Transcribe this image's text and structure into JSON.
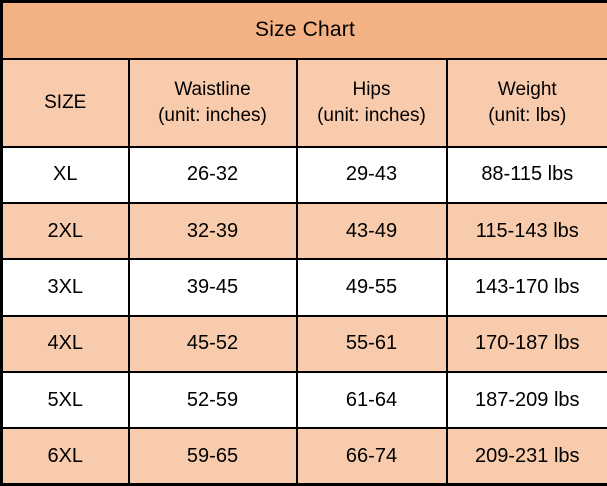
{
  "title": "Size Chart",
  "colors": {
    "title_bg": "#F4B183",
    "band_bg": "#F8CBAD",
    "white_bg": "#FFFFFF",
    "border": "#000000",
    "text": "#000000"
  },
  "table": {
    "headers": {
      "size": {
        "label": "SIZE",
        "sublabel": ""
      },
      "waist": {
        "label": "Waistline",
        "sublabel": "(unit: inches)"
      },
      "hips": {
        "label": "Hips",
        "sublabel": "(unit: inches)"
      },
      "weight": {
        "label": "Weight",
        "sublabel": "(unit: lbs)"
      }
    },
    "rows": [
      {
        "size": "XL",
        "waistline": "26-32",
        "hips": "29-43",
        "weight": "88-115 lbs"
      },
      {
        "size": "2XL",
        "waistline": "32-39",
        "hips": "43-49",
        "weight": "115-143 lbs"
      },
      {
        "size": "3XL",
        "waistline": "39-45",
        "hips": "49-55",
        "weight": "143-170 lbs"
      },
      {
        "size": "4XL",
        "waistline": "45-52",
        "hips": "55-61",
        "weight": "170-187 lbs"
      },
      {
        "size": "5XL",
        "waistline": "52-59",
        "hips": "61-64",
        "weight": "187-209 lbs"
      },
      {
        "size": "6XL",
        "waistline": "59-65",
        "hips": "66-74",
        "weight": "209-231 lbs"
      }
    ]
  }
}
